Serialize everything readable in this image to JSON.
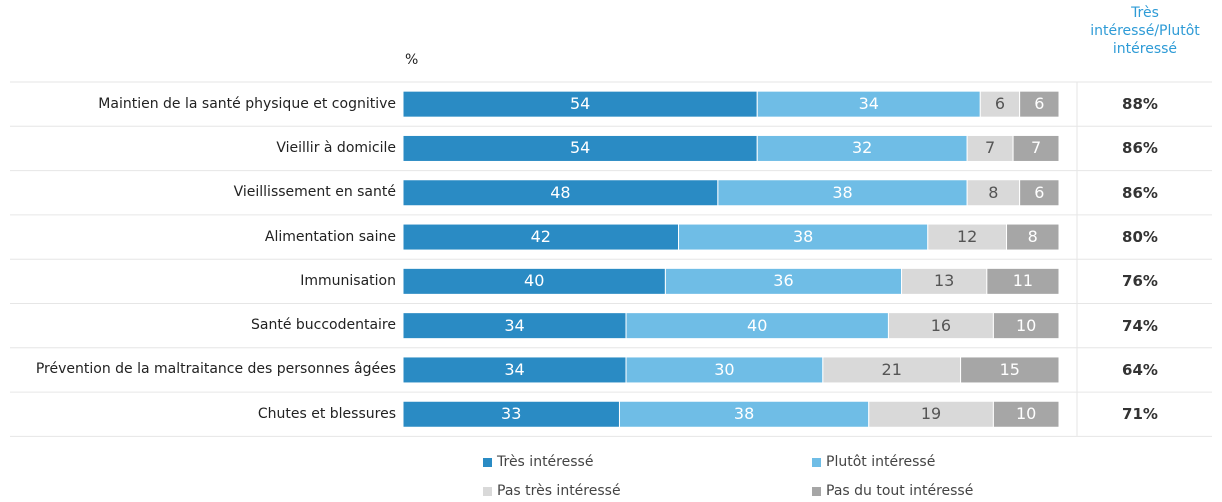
{
  "chart_data": {
    "type": "stacked-bar",
    "orientation": "horizontal",
    "x_label": "%",
    "categories": [
      "Maintien de la santé physique et cognitive",
      "Vieillir à domicile",
      "Vieillissement en santé",
      "Alimentation saine",
      "Immunisation",
      "Santé buccodentaire",
      "Prévention de la maltraitance des personnes âgées",
      "Chutes et blessures"
    ],
    "series": [
      {
        "name": "Très intéressé",
        "color": "#2a8bc4",
        "values": [
          54,
          54,
          48,
          42,
          40,
          34,
          34,
          33
        ]
      },
      {
        "name": "Plutôt intéressé",
        "color": "#6fbde6",
        "values": [
          34,
          32,
          38,
          38,
          36,
          40,
          30,
          38
        ]
      },
      {
        "name": "Pas très intéressé",
        "color": "#d9d9d9",
        "values": [
          6,
          7,
          8,
          12,
          13,
          16,
          21,
          19
        ]
      },
      {
        "name": "Pas du tout intéressé",
        "color": "#a6a6a6",
        "values": [
          6,
          7,
          6,
          8,
          11,
          10,
          15,
          10
        ]
      }
    ],
    "xlim": [
      0,
      100
    ],
    "totals": {
      "title": "Très intéressé/Plutôt intéressé",
      "values": [
        88,
        86,
        86,
        80,
        76,
        74,
        64,
        71
      ],
      "value_labels": [
        "88%",
        "86%",
        "86%",
        "80%",
        "76%",
        "74%",
        "64%",
        "71%"
      ]
    }
  }
}
